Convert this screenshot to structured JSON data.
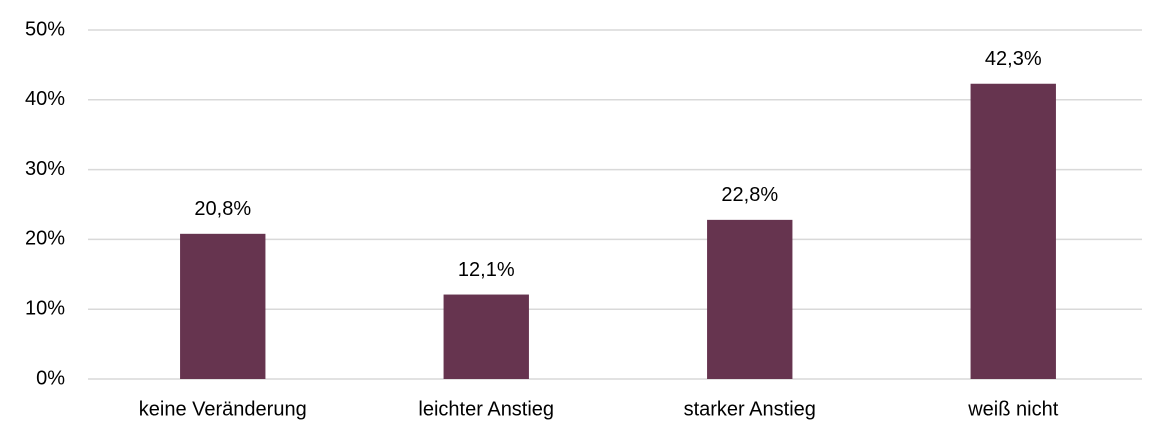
{
  "chart_data": {
    "type": "bar",
    "categories": [
      "keine Veränderung",
      "leichter Anstieg",
      "starker Anstieg",
      "weiß nicht"
    ],
    "values": [
      20.8,
      12.1,
      22.8,
      42.3
    ],
    "value_labels": [
      "20,8%",
      "12,1%",
      "22,8%",
      "42,3%"
    ],
    "color": "#66344f",
    "ylim": [
      0,
      50
    ],
    "yticks": [
      {
        "value": 0,
        "label": "0%"
      },
      {
        "value": 10,
        "label": "10%"
      },
      {
        "value": 20,
        "label": "20%"
      },
      {
        "value": 30,
        "label": "30%"
      },
      {
        "value": 40,
        "label": "40%"
      },
      {
        "value": 50,
        "label": "50%"
      }
    ],
    "grid": true
  }
}
